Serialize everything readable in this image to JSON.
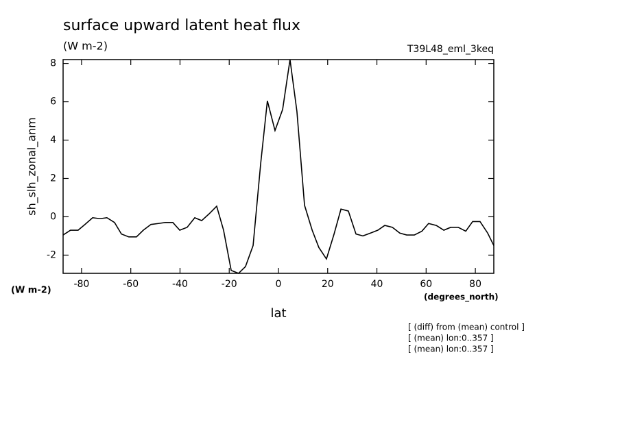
{
  "chart_data": {
    "type": "line",
    "title": "surface upward latent heat flux",
    "subtitle": "(W m-2)",
    "dataset_label": "T39L48_eml_3keq",
    "y_label": "sh_slh_zonal_anm",
    "y_units": "(W m-2)",
    "x_label": "lat",
    "x_units": "(degrees_north)",
    "notes": [
      "[ (diff) from (mean) control ]",
      "[ (mean) lon:0..357 ]",
      "[ (mean) lon:0..357 ]"
    ],
    "xlim": [
      -87.5,
      87.5
    ],
    "ylim": [
      -2.95,
      8.2
    ],
    "xticks": [
      -80,
      -60,
      -40,
      -20,
      0,
      20,
      40,
      60,
      80
    ],
    "yticks": [
      -2,
      0,
      2,
      4,
      6,
      8
    ],
    "series": [
      {
        "color": "#000000",
        "x": [
          -87.5,
          -84.5,
          -81.4,
          -78.6,
          -75.5,
          -72.5,
          -69.7,
          -66.6,
          -63.8,
          -60.8,
          -57.7,
          -54.9,
          -51.8,
          -48.8,
          -46.0,
          -42.9,
          -40.1,
          -37.1,
          -34.0,
          -31.2,
          -28.2,
          -25.1,
          -22.3,
          -19.2,
          -16.2,
          -13.4,
          -10.3,
          -7.2,
          -4.5,
          -1.4,
          1.7,
          4.7,
          7.5,
          10.6,
          13.7,
          16.4,
          19.5,
          22.6,
          25.4,
          28.4,
          31.5,
          34.3,
          37.4,
          40.4,
          43.2,
          46.3,
          49.3,
          52.1,
          55.2,
          58.3,
          61.0,
          64.1,
          67.2,
          70.0,
          73.0,
          76.1,
          78.9,
          81.9,
          85.0,
          87.5
        ],
        "values": [
          -0.95,
          -0.7,
          -0.7,
          -0.4,
          -0.05,
          -0.1,
          -0.05,
          -0.3,
          -0.9,
          -1.05,
          -1.05,
          -0.7,
          -0.4,
          -0.35,
          -0.3,
          -0.3,
          -0.7,
          -0.55,
          -0.05,
          -0.2,
          0.15,
          0.55,
          -0.7,
          -2.8,
          -2.95,
          -2.6,
          -1.5,
          2.8,
          6.05,
          4.5,
          5.6,
          8.2,
          5.5,
          0.6,
          -0.7,
          -1.6,
          -2.2,
          -0.9,
          0.4,
          0.3,
          -0.9,
          -1.0,
          -0.85,
          -0.7,
          -0.45,
          -0.55,
          -0.85,
          -0.95,
          -0.95,
          -0.75,
          -0.35,
          -0.45,
          -0.7,
          -0.55,
          -0.55,
          -0.75,
          -0.25,
          -0.25,
          -0.85,
          -1.5
        ]
      }
    ]
  }
}
